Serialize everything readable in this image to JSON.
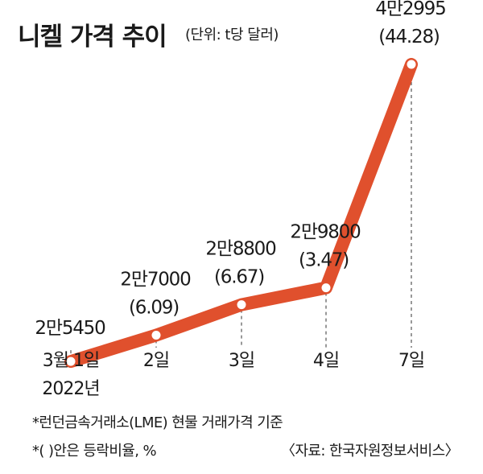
{
  "chart_data": {
    "type": "line",
    "title": "니켈 가격 추이",
    "unit_note": "(단위: t당 달러)",
    "x_labels": [
      "3월 1일",
      "2일",
      "3일",
      "4일",
      "7일"
    ],
    "x_sublabels": [
      "2022년",
      "",
      "",
      "",
      ""
    ],
    "values": [
      25450,
      27000,
      28800,
      29800,
      42995
    ],
    "value_labels": [
      "2만5450",
      "2만7000",
      "2만8800",
      "2만9800",
      "4만2995"
    ],
    "change_labels": [
      "",
      "(6.09)",
      "(6.67)",
      "(3.47)",
      "(44.28)"
    ],
    "ylim": [
      18800,
      46800
    ],
    "grid": false,
    "legend": "none",
    "colors": {
      "line": "#e0502d",
      "marker": "#ffffff",
      "dash": "#555555",
      "text": "#1a1a1a"
    }
  },
  "footnotes": {
    "note1": "*런던금속거래소(LME) 현물 거래가격 기준",
    "note2": "*(  )안은 등락비율, %",
    "source": "〈자료: 한국자원정보서비스〉"
  }
}
